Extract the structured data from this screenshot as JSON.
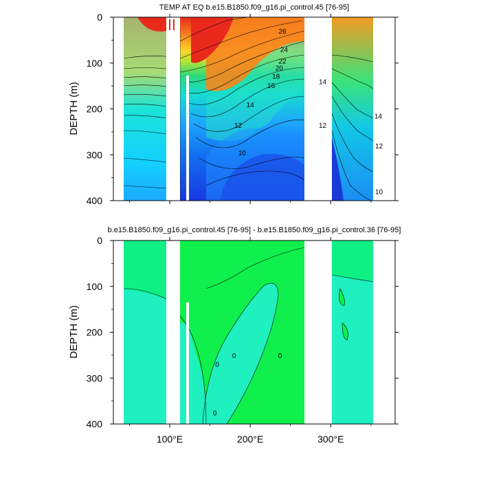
{
  "chart_data": [
    {
      "type": "contour",
      "title": "TEMP AT EQ b.e15.B1850.f09_g16.pi_control.45 [76-95]",
      "xlabel": "",
      "ylabel": "DEPTH (m)",
      "xlim": [
        30,
        380
      ],
      "ylim": [
        400,
        0
      ],
      "y_ticks": [
        "0",
        "100",
        "200",
        "300",
        "400"
      ],
      "x_tick_values": [
        100,
        200,
        300
      ],
      "x_tick_labels": [
        "100°E",
        "200°E",
        "300°E"
      ],
      "land_gaps_lon": [
        [
          98,
          120
        ],
        [
          280,
          315
        ]
      ],
      "contour_labels": [
        {
          "text": "26",
          "lon": 240,
          "depth": 30
        },
        {
          "text": "24",
          "lon": 242,
          "depth": 70
        },
        {
          "text": "22",
          "lon": 240,
          "depth": 95
        },
        {
          "text": "20",
          "lon": 236,
          "depth": 110
        },
        {
          "text": "18",
          "lon": 232,
          "depth": 128
        },
        {
          "text": "16",
          "lon": 226,
          "depth": 148
        },
        {
          "text": "14",
          "lon": 290,
          "depth": 140
        },
        {
          "text": "14",
          "lon": 200,
          "depth": 190
        },
        {
          "text": "14",
          "lon": 359,
          "depth": 215
        },
        {
          "text": "12",
          "lon": 185,
          "depth": 235
        },
        {
          "text": "12",
          "lon": 290,
          "depth": 235
        },
        {
          "text": "12",
          "lon": 360,
          "depth": 280
        },
        {
          "text": "10",
          "lon": 190,
          "depth": 295
        },
        {
          "text": "10",
          "lon": 360,
          "depth": 380
        }
      ]
    },
    {
      "type": "contour",
      "title": "b.e15.B1850.f09_g16.pi_control.45 [76-95] - b.e15.B1850.f09_g16.pi_control.36 [76-95]",
      "xlabel": "",
      "ylabel": "DEPTH (m)",
      "xlim": [
        30,
        380
      ],
      "ylim": [
        400,
        0
      ],
      "y_ticks": [
        "0",
        "100",
        "200",
        "300",
        "400"
      ],
      "x_tick_values": [
        100,
        200,
        300
      ],
      "x_tick_labels": [
        "100°E",
        "200°E",
        "300°E"
      ],
      "land_gaps_lon": [
        [
          98,
          120
        ],
        [
          280,
          315
        ]
      ],
      "contour_labels": [
        {
          "text": "0",
          "lon": 159,
          "depth": 270
        },
        {
          "text": "0",
          "lon": 180,
          "depth": 250
        },
        {
          "text": "0",
          "lon": 237,
          "depth": 250
        },
        {
          "text": "0",
          "lon": 156,
          "depth": 375
        }
      ]
    }
  ]
}
